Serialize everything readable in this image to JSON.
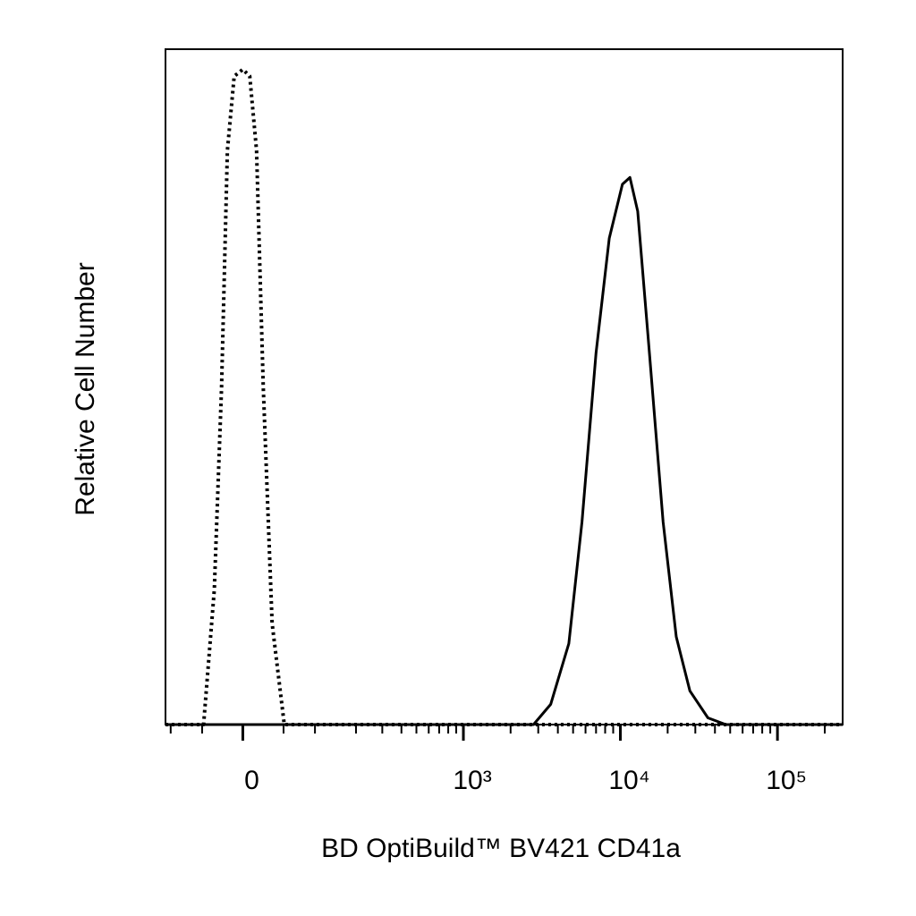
{
  "chart_data": {
    "type": "line",
    "xlabel": "BD OptiBuild™  BV421 CD41a",
    "ylabel": "Relative Cell Number",
    "xscale": "biexponential",
    "xlim": [
      -110,
      260000
    ],
    "ylim": [
      0,
      100
    ],
    "xticks": [
      0,
      {
        "value": 1000,
        "label": "10³"
      },
      {
        "value": 10000,
        "label": "10⁴"
      },
      {
        "value": 100000,
        "label": "10⁵"
      }
    ],
    "xminorticks": [
      -100,
      -50,
      50,
      100,
      200,
      300,
      400,
      500,
      600,
      700,
      800,
      900,
      2000,
      3000,
      4000,
      5000,
      6000,
      7000,
      8000,
      9000,
      20000,
      30000,
      40000,
      50000,
      60000,
      70000,
      80000,
      90000,
      200000
    ],
    "series": [
      {
        "color": "#000000",
        "style": "dotted",
        "x": [
          -110,
          -48,
          -34,
          -25,
          -18,
          -10,
          0,
          8,
          16,
          24,
          35,
          51,
          260000
        ],
        "values": [
          0,
          0,
          20,
          50,
          85,
          96,
          97,
          96,
          85,
          50,
          15,
          0,
          0
        ]
      },
      {
        "color": "#000000",
        "style": "solid",
        "x": [
          -110,
          2800,
          3600,
          4700,
          5700,
          7000,
          8500,
          10300,
          11500,
          12900,
          15300,
          18700,
          22700,
          27700,
          36100,
          46900,
          260000
        ],
        "values": [
          0,
          0,
          3,
          12,
          30,
          55,
          72,
          80,
          81,
          76,
          55,
          30,
          13,
          5,
          1,
          0,
          0
        ]
      }
    ]
  }
}
